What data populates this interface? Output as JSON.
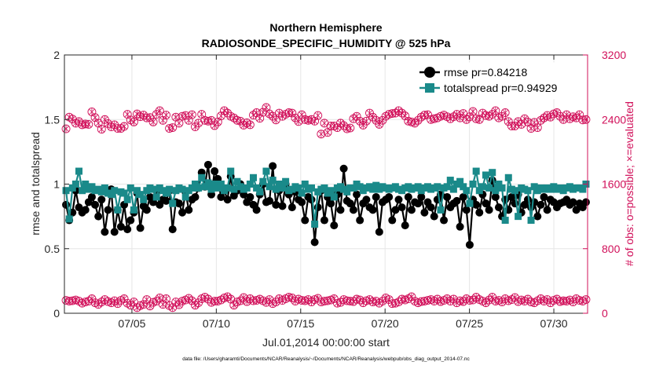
{
  "chart_data": {
    "type": "line",
    "title": [
      "Northern Hemisphere",
      "RADIOSONDE_SPECIFIC_HUMIDITY @ 525 hPa"
    ],
    "xlabel": "Jul.01,2014 00:00:00 start",
    "ylabel": "rmse and totalspread",
    "ylabel_right": "# of obs: o=possible; ×=evaluated",
    "footnote": "data file: /Users/gharamti/Documents/NCAR/Reanalysis/~/Documents/NCAR/Reanalysis/webpub/obs_diag_output_2014-07.nc",
    "xlim": [
      1,
      32
    ],
    "ylim": [
      0,
      2
    ],
    "ylim_right": [
      0,
      3200
    ],
    "xticks": [
      5,
      10,
      15,
      20,
      25,
      30
    ],
    "xtick_labels": [
      "07/05",
      "07/10",
      "07/15",
      "07/20",
      "07/25",
      "07/30"
    ],
    "yticks": [
      0,
      0.5,
      1,
      1.5,
      2
    ],
    "ytick_labels": [
      "0",
      "0.5",
      "1",
      "1.5",
      "2"
    ],
    "yticks_right": [
      0,
      800,
      1600,
      2400,
      3200
    ],
    "ytick_labels_right": [
      "0",
      "800",
      "1600",
      "2400",
      "3200"
    ],
    "grid": true,
    "legend_position": "top-right",
    "colors": {
      "rmse": "#000000",
      "totalspread": "#1a8a8a",
      "obs": "#d1105a",
      "grid": "#e6e6e6"
    },
    "series": [
      {
        "name": "rmse",
        "legend": "rmse pr=0.84218",
        "values": [
          0.84,
          0.72,
          0.78,
          0.95,
          0.82,
          0.78,
          0.8,
          0.86,
          0.9,
          0.84,
          0.75,
          0.88,
          0.63,
          0.8,
          0.96,
          0.63,
          0.8,
          0.67,
          0.84,
          0.65,
          0.72,
          0.78,
          0.93,
          0.66,
          0.83,
          0.8,
          0.9,
          0.86,
          0.95,
          0.84,
          0.88,
          0.87,
          0.95,
          0.65,
          0.86,
          0.85,
          0.78,
          0.94,
          0.8,
          0.88,
          0.9,
          0.97,
          1.09,
          0.98,
          1.15,
          0.92,
          1.1,
          1.04,
          0.9,
          0.95,
          0.88,
          1.06,
          0.91,
          0.95,
          1.0,
          0.92,
          0.86,
          0.9,
          0.84,
          0.8,
          0.92,
          1.0,
          0.86,
          0.87,
          1.14,
          0.84,
          0.95,
          0.83,
          1.0,
          0.92,
          0.82,
          0.94,
          0.88,
          0.86,
          0.72,
          0.9,
          0.88,
          0.55,
          0.82,
          0.95,
          0.72,
          0.9,
          0.85,
          0.68,
          0.92,
          0.8,
          1.12,
          0.87,
          0.85,
          0.8,
          0.92,
          0.72,
          0.85,
          0.88,
          0.82,
          0.8,
          0.9,
          0.63,
          0.86,
          0.88,
          0.9,
          0.72,
          0.8,
          0.88,
          0.82,
          0.68,
          0.9,
          0.8,
          0.86,
          0.85,
          0.9,
          0.78,
          0.86,
          0.82,
          0.75,
          0.88,
          0.92,
          0.72,
          0.9,
          0.82,
          0.85,
          0.87,
          0.67,
          0.9,
          0.8,
          0.53,
          0.88,
          0.84,
          0.78,
          0.92,
          0.85,
          0.8,
          1.03,
          0.9,
          0.82,
          0.75,
          0.88,
          0.8,
          0.9,
          0.85,
          0.92,
          0.78,
          0.84,
          0.88,
          0.82,
          0.86,
          0.75,
          0.84,
          0.9,
          0.8,
          0.88,
          0.86,
          0.82,
          0.85,
          0.86,
          0.88,
          0.84,
          0.86,
          0.8,
          0.85,
          0.82,
          0.86
        ]
      },
      {
        "name": "totalspread",
        "legend": "totalspread pr=0.94929",
        "values": [
          0.95,
          0.73,
          0.97,
          1.0,
          1.1,
          0.95,
          1.0,
          0.96,
          0.98,
          0.95,
          0.96,
          0.94,
          0.97,
          0.93,
          0.92,
          0.95,
          0.8,
          0.94,
          0.93,
          0.88,
          0.97,
          0.8,
          0.95,
          0.92,
          0.88,
          0.95,
          0.97,
          0.96,
          0.9,
          0.97,
          0.95,
          0.93,
          0.96,
          0.85,
          0.95,
          0.97,
          0.96,
          0.9,
          0.95,
          0.97,
          1.0,
          0.97,
          1.05,
          0.98,
          1.01,
          0.96,
          1.0,
          0.97,
          1.0,
          0.95,
          0.97,
          1.1,
          0.96,
          1.02,
          0.98,
          0.96,
          0.97,
          1.0,
          1.05,
          0.97,
          0.94,
          1.02,
          1.1,
          0.98,
          1.03,
          0.96,
          1.0,
          0.97,
          1.02,
          0.95,
          0.96,
          0.98,
          0.97,
          0.93,
          1.0,
          0.96,
          0.97,
          0.69,
          0.94,
          0.96,
          0.97,
          0.93,
          0.95,
          0.9,
          0.97,
          0.98,
          0.96,
          0.94,
          0.97,
          0.97,
          1.0,
          0.98,
          0.95,
          0.97,
          0.98,
          0.96,
          0.99,
          0.96,
          0.98,
          0.97,
          0.96,
          0.97,
          0.98,
          0.96,
          0.95,
          0.97,
          0.98,
          0.96,
          0.97,
          0.98,
          0.95,
          0.97,
          0.98,
          0.96,
          0.97,
          0.98,
          0.8,
          0.97,
          0.98,
          1.03,
          0.96,
          1.0,
          1.02,
          0.98,
          0.95,
          0.85,
          1.0,
          1.1,
          0.95,
          0.98,
          1.07,
          0.97,
          1.09,
          0.95,
          1.0,
          0.97,
          0.72,
          1.05,
          0.96,
          0.95,
          0.75,
          0.97,
          0.96,
          0.95,
          0.72,
          0.98,
          0.95,
          0.97,
          0.96,
          0.97,
          0.96,
          0.98,
          0.96,
          0.97,
          0.95,
          0.97,
          0.98,
          0.96,
          0.97,
          0.97,
          0.96,
          1.0
        ]
      },
      {
        "name": "obs_possible",
        "axis": "right",
        "values": [
          2285,
          2430,
          2405,
          2355,
          2375,
          2335,
          2345,
          2340,
          2495,
          2425,
          2355,
          2280,
          2400,
          2350,
          2310,
          2335,
          2290,
          2290,
          2315,
          2465,
          2395,
          2370,
          2470,
          2435,
          2455,
          2420,
          2425,
          2370,
          2465,
          2510,
          2390,
          2455,
          2290,
          2300,
          2430,
          2355,
          2440,
          2450,
          2390,
          2460,
          2310,
          2355,
          2465,
          2390,
          2380,
          2390,
          2325,
          2370,
          2445,
          2510,
          2480,
          2440,
          2420,
          2390,
          2380,
          2330,
          2360,
          2335,
          2455,
          2485,
          2415,
          2490,
          2550,
          2470,
          2440,
          2395,
          2480,
          2440,
          2465,
          2485,
          2480,
          2420,
          2375,
          2460,
          2400,
          2390,
          2400,
          2380,
          2450,
          2220,
          2355,
          2240,
          2320,
          2320,
          2300,
          2355,
          2325,
          2285,
          2295,
          2410,
          2440,
          2380,
          2330,
          2380,
          2480,
          2430,
          2390,
          2340,
          2390,
          2440,
          2465,
          2475,
          2480,
          2510,
          2480,
          2445,
          2380,
          2370,
          2355,
          2390,
          2430,
          2455,
          2460,
          2400,
          2410,
          2420,
          2440,
          2455,
          2435,
          2410,
          2435,
          2465,
          2420,
          2475,
          2400,
          2435,
          2500,
          2410,
          2400,
          2480,
          2450,
          2440,
          2465,
          2510,
          2420,
          2440,
          2485,
          2375,
          2320,
          2320,
          2375,
          2340,
          2410,
          2370,
          2290,
          2365,
          2300,
          2390,
          2420,
          2450,
          2430,
          2470,
          2485,
          2440,
          2400,
          2460,
          2410,
          2435,
          2420,
          2460,
          2395,
          2400
        ]
      },
      {
        "name": "obs_evaluated",
        "axis": "right",
        "values": [
          160,
          150,
          155,
          165,
          150,
          125,
          140,
          150,
          180,
          130,
          110,
          140,
          170,
          145,
          130,
          155,
          120,
          160,
          180,
          125,
          100,
          140,
          70,
          95,
          110,
          170,
          90,
          135,
          150,
          190,
          110,
          180,
          95,
          70,
          140,
          105,
          150,
          165,
          185,
          155,
          100,
          130,
          180,
          200,
          175,
          135,
          150,
          150,
          165,
          190,
          205,
          175,
          100,
          140,
          155,
          195,
          145,
          180,
          155,
          160,
          175,
          155,
          135,
          170,
          120,
          140,
          180,
          160,
          180,
          200,
          190,
          150,
          175,
          160,
          155,
          170,
          140,
          170,
          185,
          140,
          150,
          155,
          165,
          180,
          125,
          135,
          170,
          155,
          150,
          145,
          175,
          165,
          130,
          155,
          170,
          140,
          150,
          125,
          150,
          190,
          170,
          120,
          125,
          140,
          175,
          165,
          180,
          205,
          150,
          130,
          145,
          150,
          160,
          170,
          150,
          175,
          145,
          160,
          180,
          150,
          175,
          130,
          155,
          145,
          180,
          160,
          165,
          200,
          170,
          150,
          130,
          165,
          200,
          150,
          160,
          140,
          180,
          155,
          170,
          195,
          145,
          165,
          150,
          175,
          140,
          130,
          155,
          180,
          150,
          170,
          130,
          160,
          175,
          145,
          155,
          150,
          165,
          140,
          180,
          160,
          150,
          170
        ]
      }
    ]
  }
}
